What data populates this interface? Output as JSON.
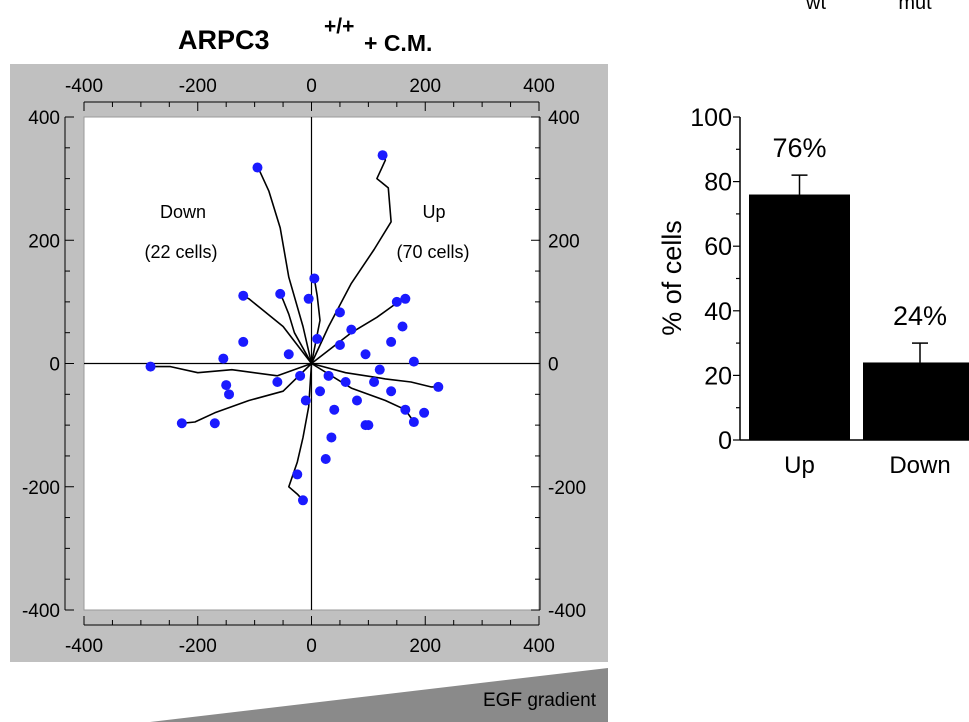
{
  "header_fragment": {
    "left": "wt",
    "right": "mut"
  },
  "chart_data": [
    {
      "type": "scatter",
      "title": "ARPC3",
      "title_superscript": "+/+",
      "title_suffix": "+ C.M.",
      "xlim": [
        -400,
        400
      ],
      "ylim": [
        -400,
        400
      ],
      "x_ticks": [
        -400,
        -200,
        0,
        200,
        400
      ],
      "y_ticks": [
        400,
        200,
        0,
        -200,
        -400
      ],
      "grid": false,
      "quadrant_labels": [
        {
          "name": "down",
          "label": "Down",
          "count": "(22 cells)"
        },
        {
          "name": "up",
          "label": "Up",
          "count": "(70 cells)"
        }
      ],
      "marker_color": "#1a1aff",
      "track_color": "#000000",
      "series": [
        {
          "tracks": [
            [
              [
                0,
                0
              ],
              [
                -15,
                60
              ],
              [
                -40,
                140
              ],
              [
                -55,
                220
              ],
              [
                -75,
                280
              ],
              [
                -95,
                320
              ]
            ],
            [
              [
                0,
                0
              ],
              [
                30,
                60
              ],
              [
                70,
                130
              ],
              [
                110,
                185
              ],
              [
                140,
                230
              ],
              [
                135,
                285
              ],
              [
                115,
                300
              ],
              [
                130,
                330
              ],
              [
                125,
                338
              ]
            ],
            [
              [
                0,
                0
              ],
              [
                -60,
                -20
              ],
              [
                -140,
                -10
              ],
              [
                -200,
                -15
              ],
              [
                -248,
                -5
              ],
              [
                -275,
                -5
              ],
              [
                -283,
                -5
              ]
            ],
            [
              [
                0,
                0
              ],
              [
                -50,
                -45
              ],
              [
                -110,
                -60
              ],
              [
                -170,
                -80
              ],
              [
                -205,
                -95
              ],
              [
                -228,
                -97
              ]
            ],
            [
              [
                0,
                0
              ],
              [
                -5,
                -70
              ],
              [
                -15,
                -120
              ],
              [
                -25,
                -160
              ],
              [
                -40,
                -200
              ],
              [
                -25,
                -212
              ],
              [
                -15,
                -222
              ]
            ],
            [
              [
                0,
                0
              ],
              [
                60,
                -15
              ],
              [
                130,
                -25
              ],
              [
                175,
                -30
              ],
              [
                210,
                -38
              ],
              [
                223,
                -38
              ]
            ],
            [
              [
                0,
                0
              ],
              [
                70,
                -40
              ],
              [
                130,
                -60
              ],
              [
                165,
                -75
              ],
              [
                180,
                -95
              ]
            ],
            [
              [
                0,
                0
              ],
              [
                -50,
                60
              ],
              [
                -90,
                90
              ],
              [
                -110,
                105
              ],
              [
                -120,
                110
              ]
            ],
            [
              [
                0,
                0
              ],
              [
                -30,
                50
              ],
              [
                -40,
                80
              ],
              [
                -50,
                103
              ],
              [
                -55,
                113
              ]
            ],
            [
              [
                0,
                0
              ],
              [
                15,
                70
              ],
              [
                10,
                110
              ],
              [
                5,
                138
              ]
            ],
            [
              [
                0,
                0
              ],
              [
                70,
                50
              ],
              [
                115,
                75
              ],
              [
                145,
                95
              ],
              [
                160,
                107
              ]
            ]
          ],
          "points": [
            [
              -95,
              318
            ],
            [
              125,
              338
            ],
            [
              -283,
              -5
            ],
            [
              -228,
              -97
            ],
            [
              -170,
              -97
            ],
            [
              -15,
              -222
            ],
            [
              -25,
              -180
            ],
            [
              -145,
              -50
            ],
            [
              -150,
              -35
            ],
            [
              -155,
              8
            ],
            [
              -120,
              35
            ],
            [
              -120,
              110
            ],
            [
              -55,
              113
            ],
            [
              5,
              138
            ],
            [
              -5,
              105
            ],
            [
              50,
              83
            ],
            [
              150,
              100
            ],
            [
              165,
              105
            ],
            [
              160,
              60
            ],
            [
              140,
              35
            ],
            [
              180,
              3
            ],
            [
              223,
              -38
            ],
            [
              198,
              -80
            ],
            [
              180,
              -95
            ],
            [
              165,
              -75
            ],
            [
              140,
              -45
            ],
            [
              110,
              -30
            ],
            [
              120,
              -10
            ],
            [
              95,
              15
            ],
            [
              70,
              55
            ],
            [
              50,
              30
            ],
            [
              30,
              -20
            ],
            [
              15,
              -45
            ],
            [
              40,
              -75
            ],
            [
              80,
              -60
            ],
            [
              95,
              -100
            ],
            [
              35,
              -120
            ],
            [
              25,
              -155
            ],
            [
              -20,
              -20
            ],
            [
              -60,
              -30
            ],
            [
              -40,
              15
            ],
            [
              10,
              40
            ],
            [
              -10,
              -60
            ],
            [
              60,
              -30
            ],
            [
              100,
              -100
            ]
          ]
        }
      ]
    },
    {
      "type": "bar",
      "categories": [
        "Up",
        "Down"
      ],
      "values": [
        76,
        24
      ],
      "errors": [
        6,
        6
      ],
      "data_labels": [
        "76%",
        "24%"
      ],
      "ylabel": "% of cells",
      "ylim": [
        0,
        100
      ],
      "y_ticks": [
        0,
        20,
        40,
        60,
        80,
        100
      ],
      "bar_color": "#000000"
    }
  ],
  "gradient": {
    "label": "EGF gradient"
  }
}
